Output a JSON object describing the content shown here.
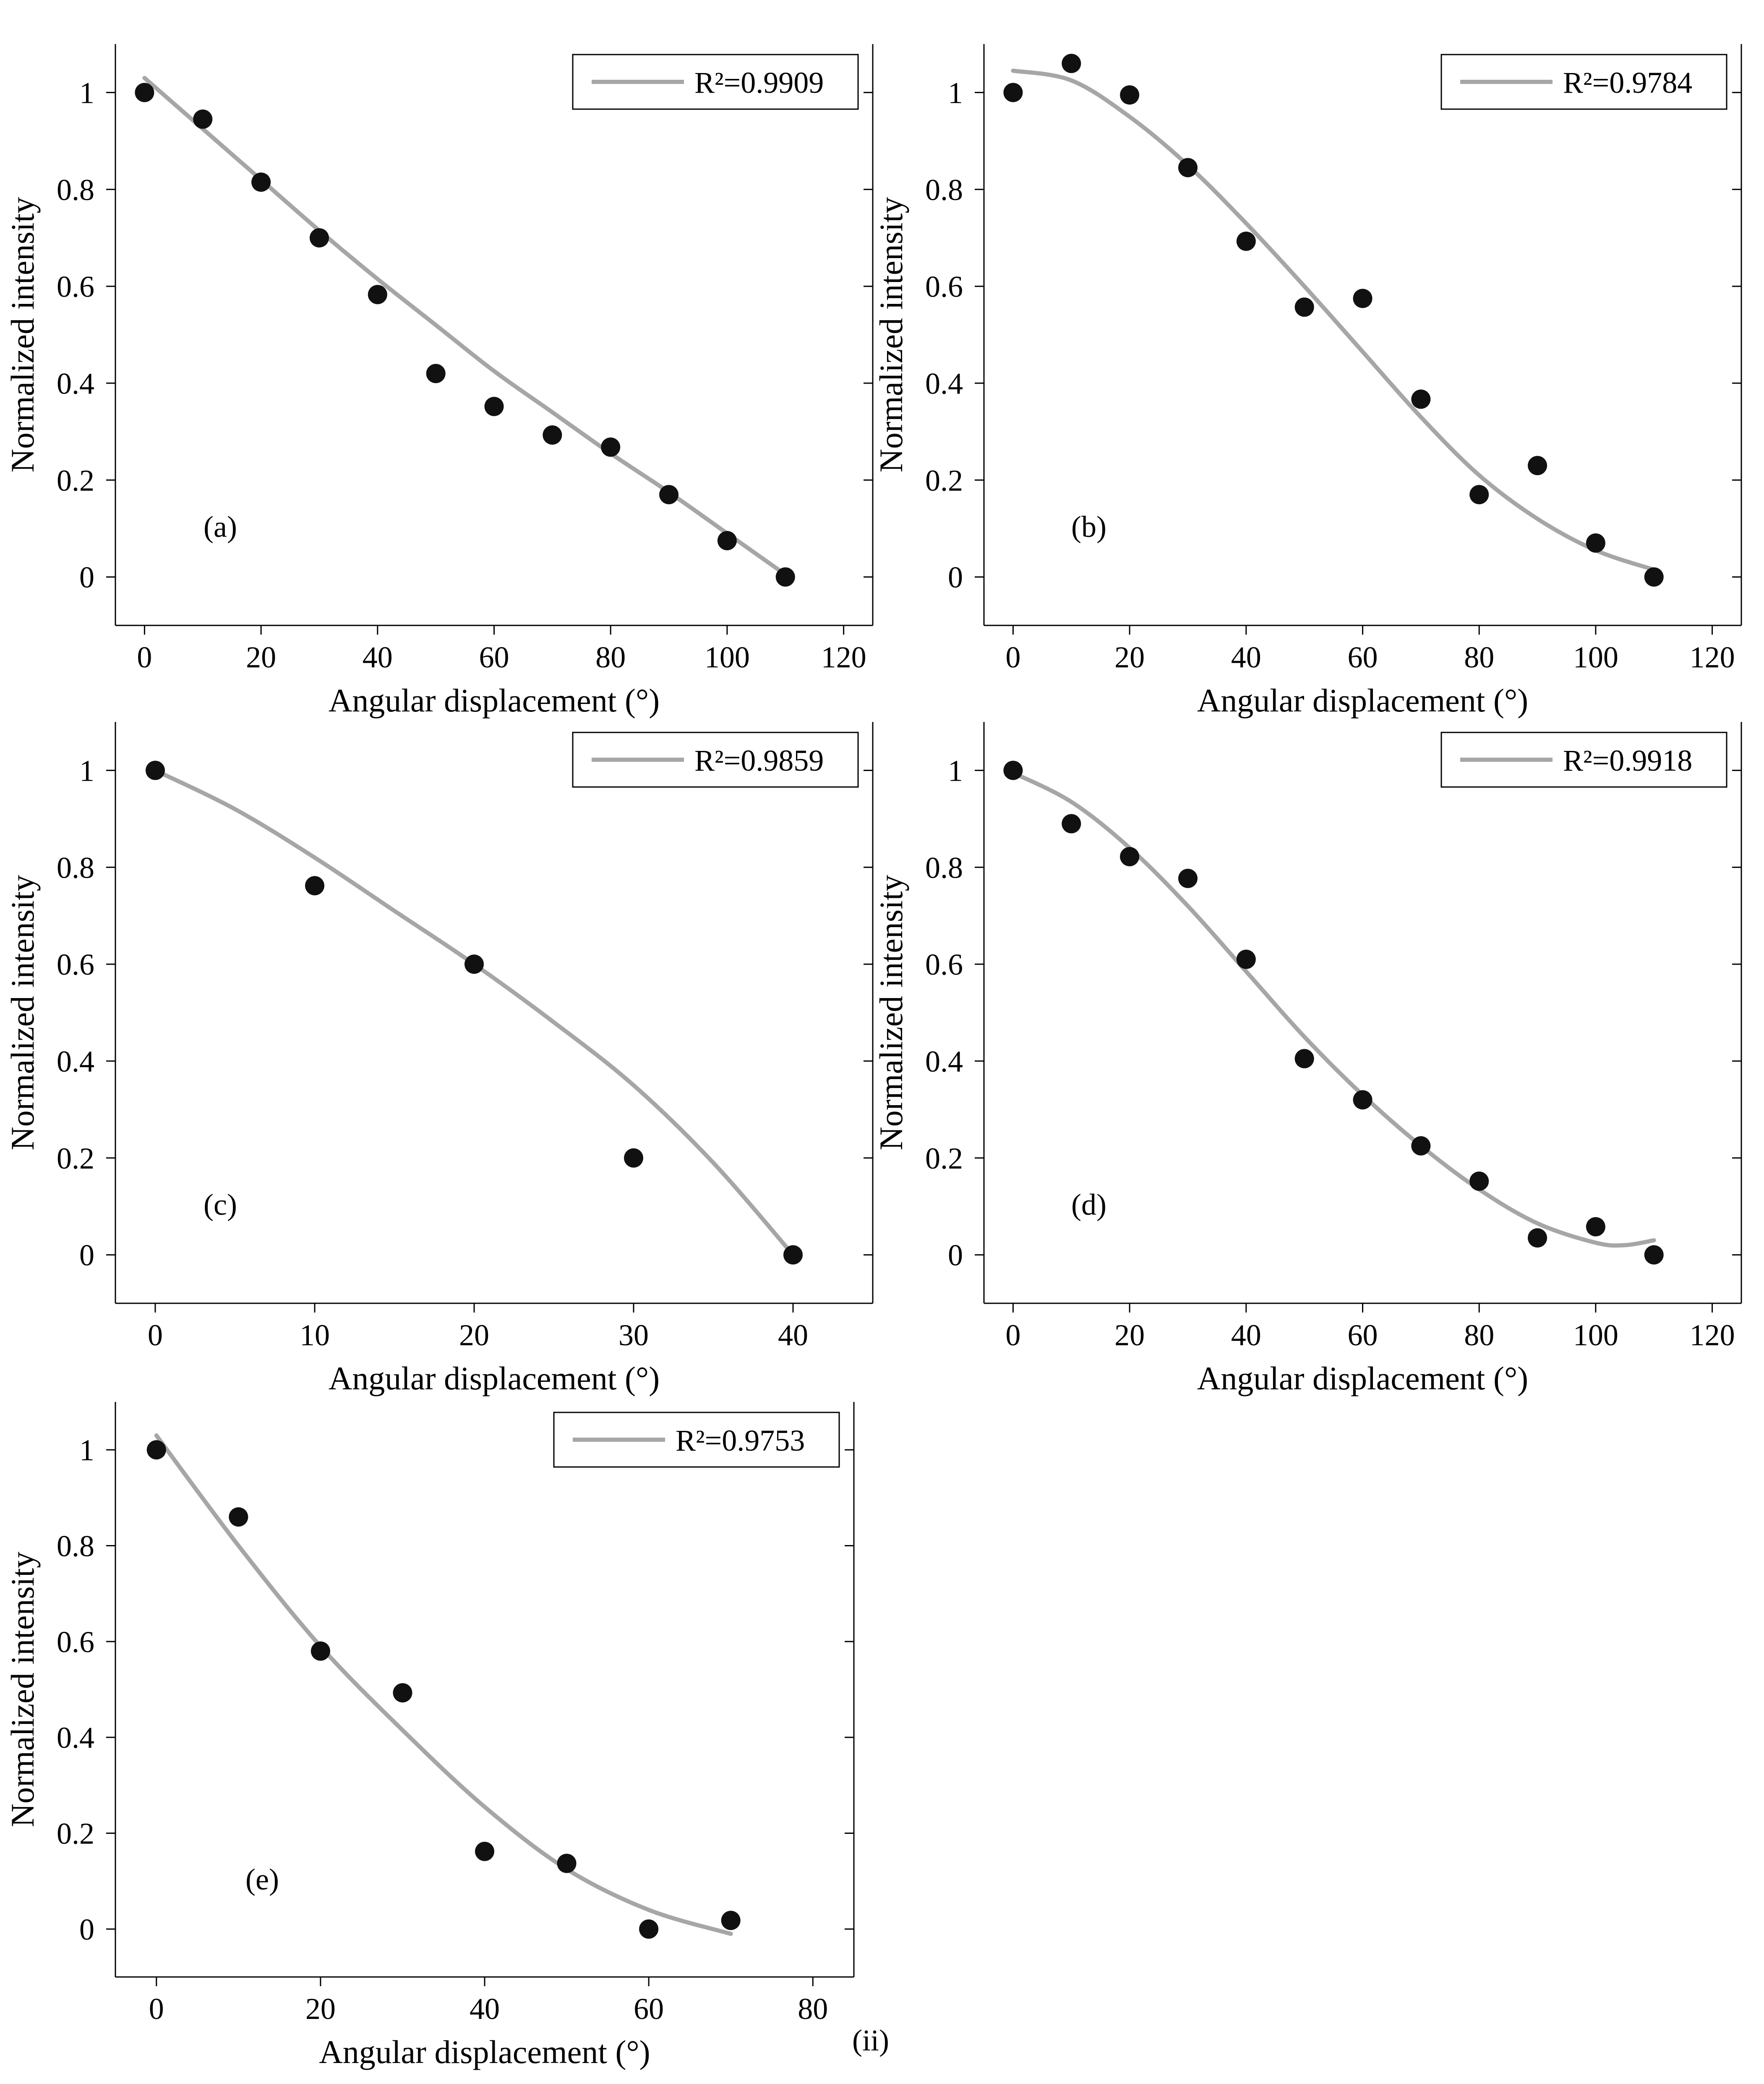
{
  "figure": {
    "part_label": "(ii)",
    "colors": {
      "points": "#111111",
      "fit_line": "#a6a6a6",
      "axes": "#000000",
      "part_label": "#4b2a5a"
    }
  },
  "chart_data": [
    {
      "type": "scatter",
      "panel_label": "(a)",
      "xlabel": "Angular displacement (°)",
      "ylabel": "Normalized intensity",
      "xlim": [
        -5,
        125
      ],
      "ylim": [
        -0.1,
        1.1
      ],
      "xticks": [
        0,
        20,
        40,
        60,
        80,
        100,
        120
      ],
      "yticks": [
        0,
        0.2,
        0.4,
        0.6,
        0.8,
        1
      ],
      "legend": {
        "entry": "R²=0.9909",
        "position": "top-right"
      },
      "points": {
        "x": [
          0,
          10,
          20,
          30,
          40,
          50,
          60,
          70,
          80,
          90,
          100,
          110
        ],
        "y": [
          1.0,
          0.945,
          0.815,
          0.7,
          0.583,
          0.42,
          0.352,
          0.293,
          0.268,
          0.17,
          0.075,
          0.0
        ]
      },
      "fit": {
        "x": [
          0,
          10,
          20,
          30,
          40,
          50,
          60,
          70,
          80,
          90,
          100,
          110
        ],
        "y": [
          1.03,
          0.925,
          0.82,
          0.715,
          0.615,
          0.52,
          0.425,
          0.34,
          0.255,
          0.175,
          0.09,
          0.005
        ]
      }
    },
    {
      "type": "scatter",
      "panel_label": "(b)",
      "xlabel": "Angular displacement (°)",
      "ylabel": "Normalized intensity",
      "xlim": [
        -5,
        125
      ],
      "ylim": [
        -0.1,
        1.1
      ],
      "xticks": [
        0,
        20,
        40,
        60,
        80,
        100,
        120
      ],
      "yticks": [
        0,
        0.2,
        0.4,
        0.6,
        0.8,
        1
      ],
      "legend": {
        "entry": "R²=0.9784",
        "position": "top-right"
      },
      "points": {
        "x": [
          0,
          10,
          20,
          30,
          40,
          50,
          60,
          70,
          80,
          90,
          100,
          110
        ],
        "y": [
          1.0,
          1.06,
          0.995,
          0.845,
          0.693,
          0.557,
          0.575,
          0.367,
          0.17,
          0.23,
          0.07,
          0.0
        ]
      },
      "fit": {
        "x": [
          0,
          10,
          20,
          30,
          40,
          50,
          60,
          70,
          80,
          90,
          100,
          110
        ],
        "y": [
          1.045,
          1.025,
          0.95,
          0.85,
          0.73,
          0.6,
          0.465,
          0.33,
          0.21,
          0.12,
          0.055,
          0.015
        ]
      }
    },
    {
      "type": "scatter",
      "panel_label": "(c)",
      "xlabel": "Angular displacement (°)",
      "ylabel": "Normalized intensity",
      "xlim": [
        -2.5,
        45
      ],
      "ylim": [
        -0.1,
        1.1
      ],
      "xticks": [
        0,
        10,
        20,
        30,
        40
      ],
      "yticks": [
        0,
        0.2,
        0.4,
        0.6,
        0.8,
        1
      ],
      "legend": {
        "entry": "R²=0.9859",
        "position": "top-right"
      },
      "points": {
        "x": [
          0,
          10,
          20,
          30,
          40
        ],
        "y": [
          1.0,
          0.762,
          0.6,
          0.2,
          0.0
        ]
      },
      "fit": {
        "x": [
          0,
          5,
          10,
          15,
          20,
          25,
          30,
          35,
          40
        ],
        "y": [
          1.0,
          0.92,
          0.82,
          0.71,
          0.6,
          0.48,
          0.35,
          0.19,
          0.0
        ]
      }
    },
    {
      "type": "scatter",
      "panel_label": "(d)",
      "xlabel": "Angular displacement (°)",
      "ylabel": "Normalized intensity",
      "xlim": [
        -5,
        125
      ],
      "ylim": [
        -0.1,
        1.1
      ],
      "xticks": [
        0,
        20,
        40,
        60,
        80,
        100,
        120
      ],
      "yticks": [
        0,
        0.2,
        0.4,
        0.6,
        0.8,
        1
      ],
      "legend": {
        "entry": "R²=0.9918",
        "position": "top-right"
      },
      "points": {
        "x": [
          0,
          10,
          20,
          30,
          40,
          50,
          60,
          70,
          80,
          90,
          100,
          110
        ],
        "y": [
          1.0,
          0.89,
          0.822,
          0.777,
          0.61,
          0.405,
          0.32,
          0.225,
          0.152,
          0.035,
          0.058,
          0.0
        ]
      },
      "fit": {
        "x": [
          0,
          10,
          20,
          30,
          40,
          50,
          60,
          70,
          80,
          90,
          100,
          105,
          110
        ],
        "y": [
          0.995,
          0.935,
          0.84,
          0.72,
          0.585,
          0.45,
          0.33,
          0.225,
          0.135,
          0.065,
          0.025,
          0.02,
          0.03
        ]
      }
    },
    {
      "type": "scatter",
      "panel_label": "(e)",
      "xlabel": "Angular displacement (°)",
      "ylabel": "Normalized intensity",
      "xlim": [
        -5,
        85
      ],
      "ylim": [
        -0.1,
        1.1
      ],
      "xticks": [
        0,
        20,
        40,
        60,
        80
      ],
      "yticks": [
        0,
        0.2,
        0.4,
        0.6,
        0.8,
        1
      ],
      "legend": {
        "entry": "R²=0.9753",
        "position": "top-right"
      },
      "points": {
        "x": [
          0,
          10,
          20,
          30,
          40,
          50,
          60,
          70
        ],
        "y": [
          1.0,
          0.86,
          0.58,
          0.493,
          0.162,
          0.137,
          0.0,
          0.018
        ]
      },
      "fit": {
        "x": [
          0,
          10,
          20,
          30,
          40,
          50,
          60,
          70
        ],
        "y": [
          1.03,
          0.8,
          0.59,
          0.415,
          0.255,
          0.125,
          0.04,
          -0.01
        ]
      }
    }
  ]
}
